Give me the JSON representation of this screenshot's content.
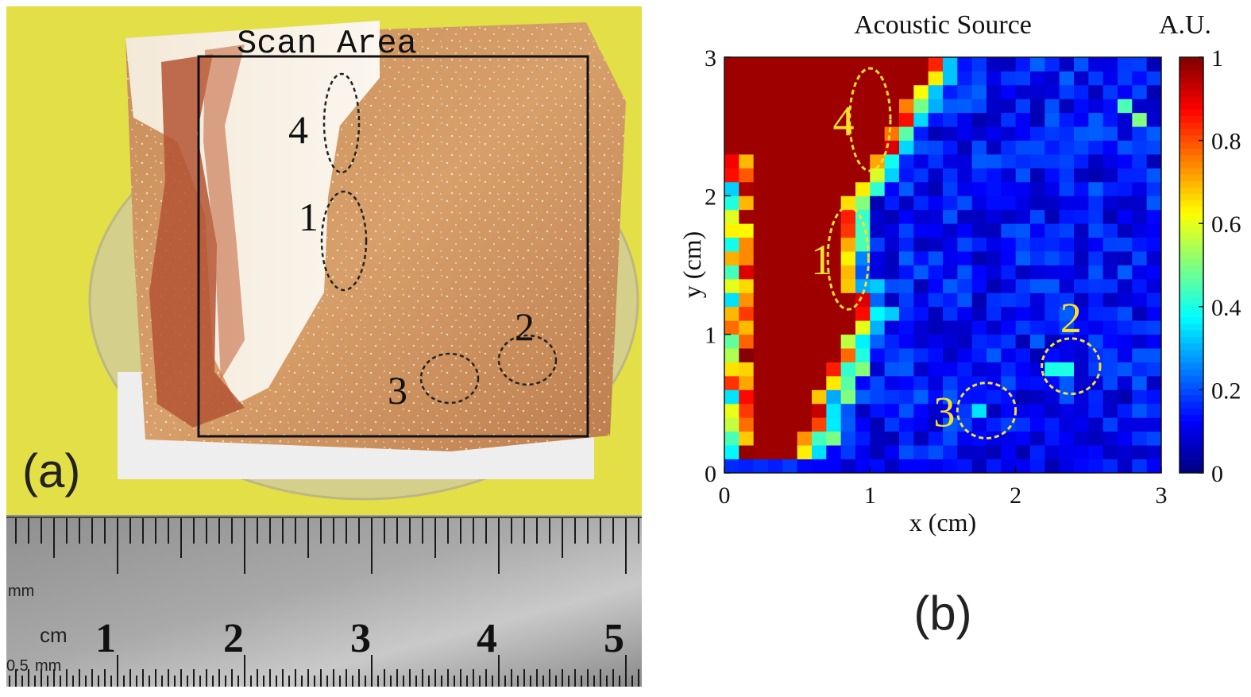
{
  "panel_a": {
    "label": "(a)",
    "scan_area_label": "Scan Area",
    "markers": [
      "4",
      "1",
      "2",
      "3"
    ],
    "ruler": {
      "unit_mm": "mm",
      "unit_cm": "cm",
      "unit_half_mm": "0.5",
      "unit_half_mm_suffix": "mm",
      "numbers": [
        "1",
        "2",
        "3",
        "4",
        "5"
      ]
    }
  },
  "panel_b": {
    "label": "(b)"
  },
  "chart_data": {
    "type": "heatmap",
    "title": "Acoustic Source",
    "xlabel": "x (cm)",
    "ylabel": "y (cm)",
    "xlim": [
      0,
      3
    ],
    "ylim": [
      0,
      3
    ],
    "xticks": [
      "0",
      "1",
      "2",
      "3"
    ],
    "yticks": [
      "0",
      "1",
      "2",
      "3"
    ],
    "grid_size": [
      30,
      30
    ],
    "colorbar": {
      "label": "A.U.",
      "range": [
        0,
        1
      ],
      "ticks": [
        "0",
        "0.2",
        "0.4",
        "0.6",
        "0.8",
        "1"
      ],
      "colormap": "jet"
    },
    "annotations": [
      {
        "text": "4",
        "x": 1.0,
        "y": 2.55,
        "rx": 0.14,
        "ry": 0.37
      },
      {
        "text": "1",
        "x": 0.85,
        "y": 1.55,
        "rx": 0.14,
        "ry": 0.37
      },
      {
        "text": "2",
        "x": 2.38,
        "y": 0.77,
        "rx": 0.2,
        "ry": 0.2
      },
      {
        "text": "3",
        "x": 1.8,
        "y": 0.45,
        "rx": 0.2,
        "ry": 0.2
      }
    ],
    "annotation_color": "#f5e12c",
    "hot_region": "high values (~1) left of a boundary running from (0.55,0) to (1.05,1.15) to (0.9,1.95) to (1.3,2.5) to (1.55,3); background ~0.05-0.25 elsewhere",
    "hot_spots": [
      {
        "x": 2.35,
        "y": 0.75,
        "value": 0.55
      },
      {
        "x": 2.3,
        "y": 0.75,
        "value": 0.4
      },
      {
        "x": 1.75,
        "y": 0.45,
        "value": 0.35
      },
      {
        "x": 2.85,
        "y": 2.55,
        "value": 0.5
      },
      {
        "x": 2.75,
        "y": 2.65,
        "value": 0.45
      }
    ]
  }
}
